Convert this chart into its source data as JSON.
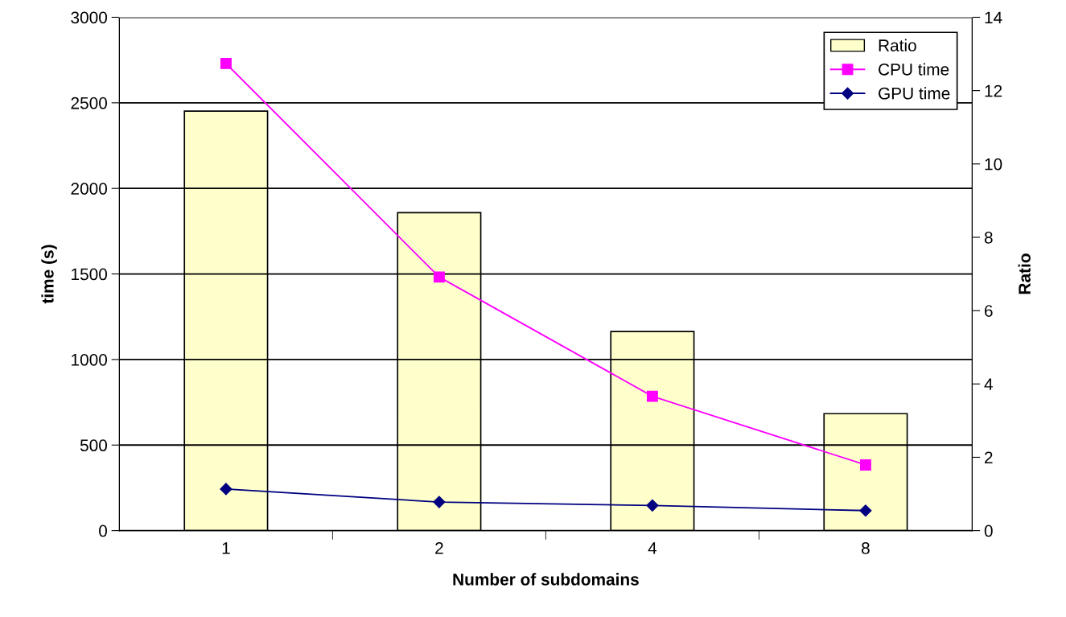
{
  "chart_data": {
    "type": "line",
    "xlabel": "Number of subdomains",
    "ylabel": "time (s)",
    "y2label": "Ratio",
    "categories": [
      "1",
      "2",
      "4",
      "8"
    ],
    "series": [
      {
        "name": "Ratio",
        "type": "bar",
        "axis": "y2",
        "color": "#ffffcc",
        "values": [
          11.44,
          8.67,
          5.43,
          3.19
        ]
      },
      {
        "name": "CPU time",
        "marker": "square",
        "color": "#ff00ff",
        "values": [
          2730,
          1482,
          785,
          384
        ]
      },
      {
        "name": "GPU time",
        "marker": "diamond",
        "color": "#000080",
        "values": [
          243,
          167,
          147,
          117
        ]
      }
    ],
    "ylim": [
      0,
      3000
    ],
    "yticks": [
      0,
      500,
      1000,
      1500,
      2000,
      2500,
      3000
    ],
    "y2lim": [
      0,
      14
    ],
    "y2ticks": [
      0,
      2,
      4,
      6,
      8,
      10,
      12,
      14
    ],
    "grid": "y",
    "legend": "top right"
  }
}
